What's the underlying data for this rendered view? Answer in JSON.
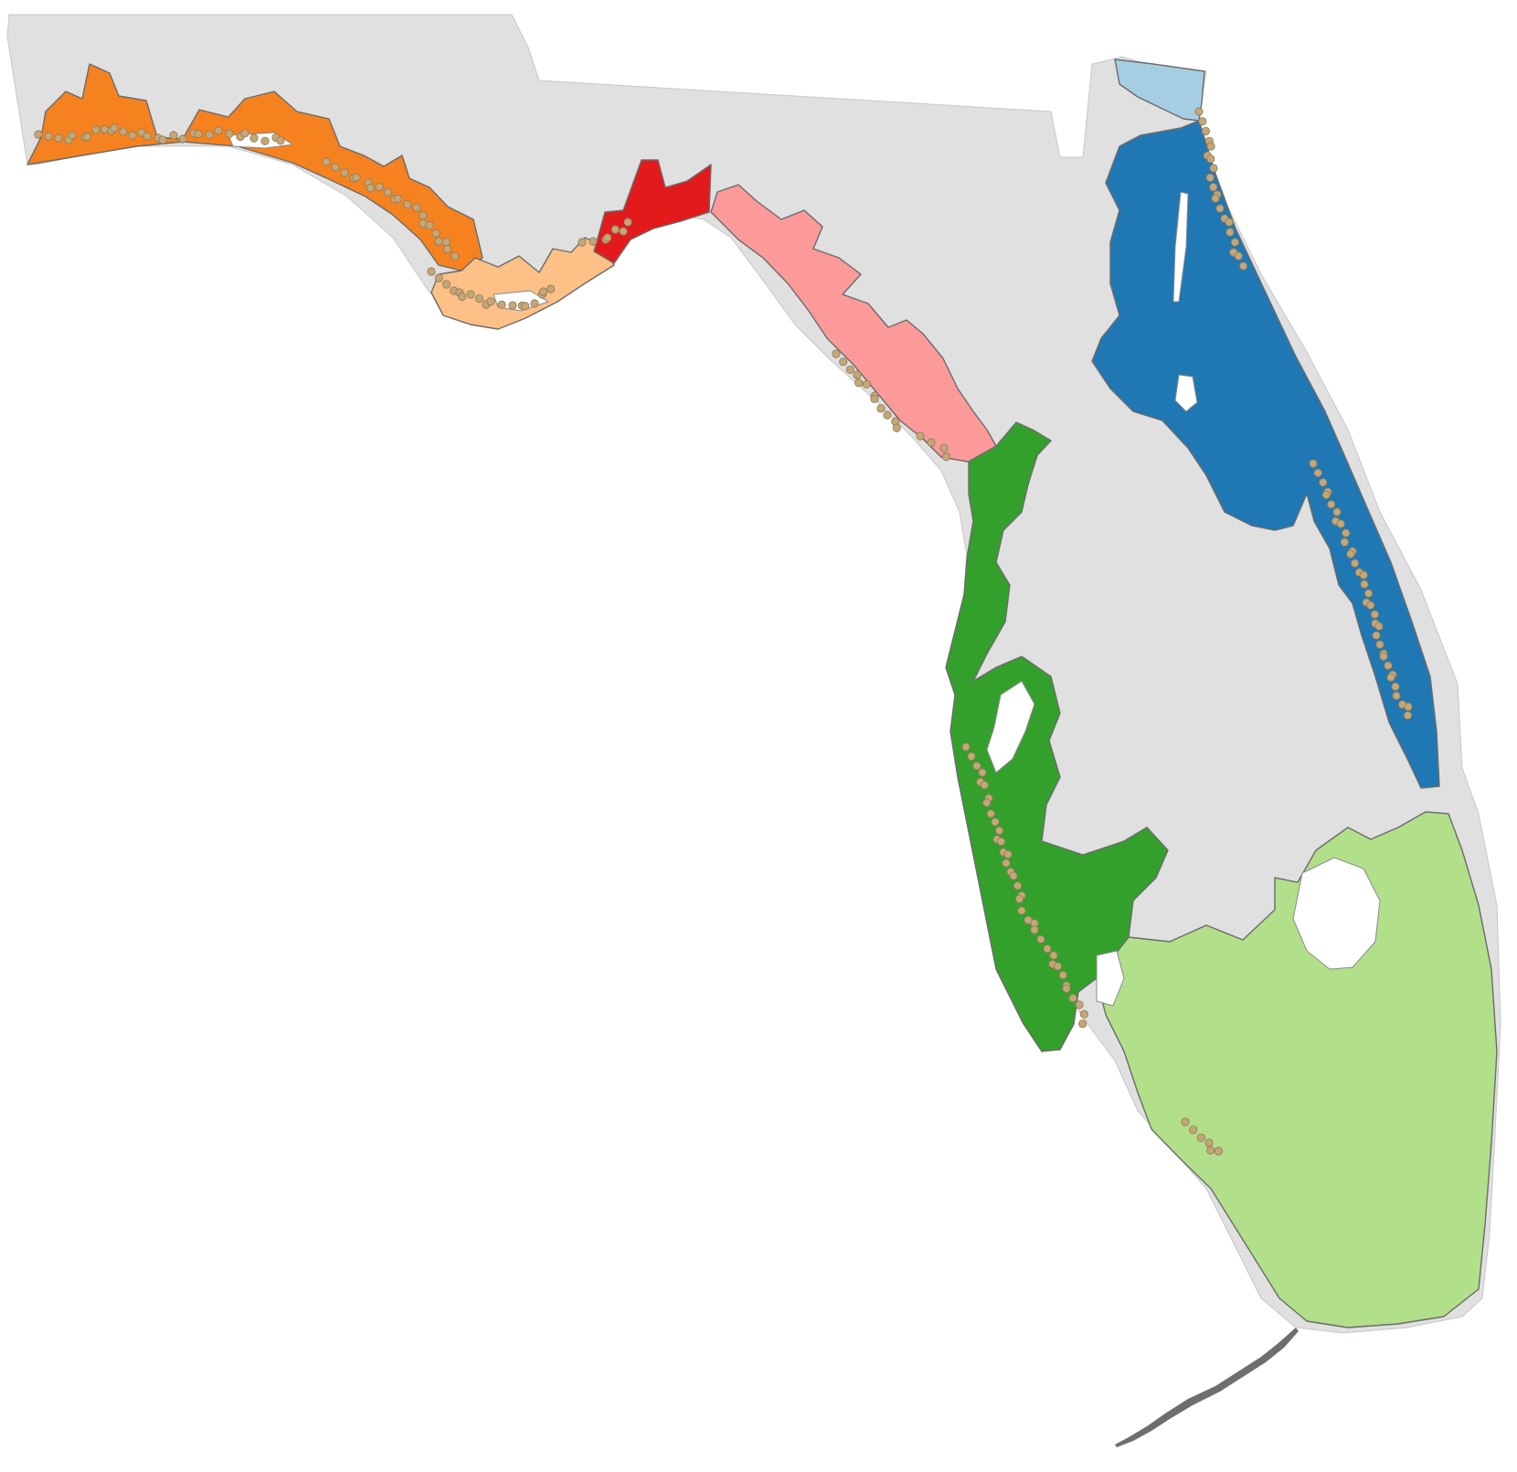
{
  "map": {
    "state": "Florida",
    "land_color": "#e0e0e0",
    "water_color": "#ffffff",
    "outline_color": "#6b6b6b",
    "site_color": "#c4a678",
    "regions": [
      {
        "id": "western-panhandle",
        "color": "#f5821f"
      },
      {
        "id": "central-panhandle",
        "color": "#fdc086"
      },
      {
        "id": "apalachee-bay",
        "color": "#e31a1c"
      },
      {
        "id": "big-bend",
        "color": "#fb9a99"
      },
      {
        "id": "west-central-gulf",
        "color": "#33a02c"
      },
      {
        "id": "south-florida",
        "color": "#b2df8a"
      },
      {
        "id": "northeast-atlantic",
        "color": "#a6cee3"
      },
      {
        "id": "east-central-atlantic",
        "color": "#1f78b4"
      }
    ]
  }
}
